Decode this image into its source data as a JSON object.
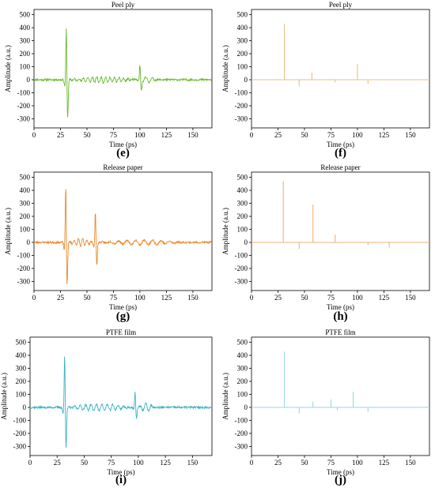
{
  "chart_data": [
    {
      "id": "e",
      "type": "line",
      "kind": "waveform",
      "title": "Peel ply",
      "xlabel": "Time (ps)",
      "ylabel": "Amplitude (a.u.)",
      "panel_label": "(e)",
      "color": "#6ab82e",
      "xlim": [
        0,
        168
      ],
      "ylim": [
        -370,
        540
      ],
      "xticks": [
        0,
        25,
        50,
        75,
        100,
        125,
        150
      ],
      "yticks": [
        -300,
        -200,
        -100,
        0,
        100,
        200,
        300,
        400,
        500
      ],
      "events": [
        {
          "t": 30.5,
          "amp": 420
        },
        {
          "t": 100,
          "amp": 115
        }
      ],
      "oscillations": [
        {
          "t0": 33,
          "t1": 95,
          "amp": 22,
          "period": 4.2
        },
        {
          "t0": 98,
          "t1": 115,
          "amp": 25,
          "period": 6
        }
      ],
      "noise": 8,
      "seed": 11
    },
    {
      "id": "f",
      "type": "bar",
      "kind": "impulses",
      "title": "Peel ply",
      "xlabel": "Time (ps)",
      "ylabel": "Amplitude (a.u.)",
      "panel_label": "(f)",
      "color": "#e8c08a",
      "xlim": [
        0,
        168
      ],
      "ylim": [
        -370,
        540
      ],
      "xticks": [
        0,
        25,
        50,
        75,
        100,
        125,
        150
      ],
      "yticks": [
        -300,
        -200,
        -100,
        0,
        100,
        200,
        300,
        400,
        500
      ],
      "impulses": [
        {
          "x": 31,
          "y": 430
        },
        {
          "x": 45,
          "y": -50
        },
        {
          "x": 57,
          "y": 55
        },
        {
          "x": 79,
          "y": -20
        },
        {
          "x": 100,
          "y": 120
        },
        {
          "x": 110,
          "y": -30
        }
      ]
    },
    {
      "id": "g",
      "type": "line",
      "kind": "waveform",
      "title": "Release paper",
      "xlabel": "Time (ps)",
      "ylabel": "Amplitude (a.u.)",
      "panel_label": "(g)",
      "color": "#e8892b",
      "xlim": [
        0,
        168
      ],
      "ylim": [
        -370,
        540
      ],
      "xticks": [
        0,
        25,
        50,
        75,
        100,
        125,
        150
      ],
      "yticks": [
        -300,
        -200,
        -100,
        0,
        100,
        200,
        300,
        400,
        500
      ],
      "events": [
        {
          "t": 30,
          "amp": 465
        },
        {
          "t": 58,
          "amp": 255
        }
      ],
      "oscillations": [
        {
          "t0": 33,
          "t1": 55,
          "amp": 30,
          "period": 4
        },
        {
          "t0": 62,
          "t1": 140,
          "amp": 18,
          "period": 8
        }
      ],
      "noise": 8,
      "seed": 23
    },
    {
      "id": "h",
      "type": "bar",
      "kind": "impulses",
      "title": "Release paper",
      "xlabel": "Time (ps)",
      "ylabel": "Amplitude (a.u.)",
      "panel_label": "(h)",
      "color": "#f1b27a",
      "xlim": [
        0,
        168
      ],
      "ylim": [
        -370,
        540
      ],
      "xticks": [
        0,
        25,
        50,
        75,
        100,
        125,
        150
      ],
      "yticks": [
        -300,
        -200,
        -100,
        0,
        100,
        200,
        300,
        400,
        500
      ],
      "impulses": [
        {
          "x": 30,
          "y": 470
        },
        {
          "x": 45,
          "y": -50
        },
        {
          "x": 58,
          "y": 290
        },
        {
          "x": 79,
          "y": 60
        },
        {
          "x": 110,
          "y": -20
        },
        {
          "x": 130,
          "y": -40
        }
      ]
    },
    {
      "id": "i",
      "type": "line",
      "kind": "waveform",
      "title": "PTFE film",
      "xlabel": "Time (ps)",
      "ylabel": "Amplitude (a.u.)",
      "panel_label": "(i)",
      "color": "#3bb3c3",
      "xlim": [
        0,
        168
      ],
      "ylim": [
        -370,
        540
      ],
      "xticks": [
        0,
        25,
        50,
        75,
        100,
        125,
        150
      ],
      "yticks": [
        -300,
        -200,
        -100,
        0,
        100,
        200,
        300,
        400,
        500
      ],
      "events": [
        {
          "t": 32,
          "amp": 435
        },
        {
          "t": 97,
          "amp": 120
        }
      ],
      "oscillations": [
        {
          "t0": 35,
          "t1": 93,
          "amp": 25,
          "period": 5
        },
        {
          "t0": 100,
          "t1": 115,
          "amp": 30,
          "period": 5.5
        }
      ],
      "noise": 8,
      "seed": 37
    },
    {
      "id": "j",
      "type": "bar",
      "kind": "impulses",
      "title": "PTFE film",
      "xlabel": "Time (ps)",
      "ylabel": "Amplitude (a.u.)",
      "panel_label": "(j)",
      "color": "#9fd6df",
      "xlim": [
        0,
        168
      ],
      "ylim": [
        -370,
        540
      ],
      "xticks": [
        0,
        25,
        50,
        75,
        100,
        125,
        150
      ],
      "yticks": [
        -300,
        -200,
        -100,
        0,
        100,
        200,
        300,
        400,
        500
      ],
      "impulses": [
        {
          "x": 31,
          "y": 430
        },
        {
          "x": 45,
          "y": -45
        },
        {
          "x": 58,
          "y": 45
        },
        {
          "x": 75,
          "y": 60
        },
        {
          "x": 81,
          "y": -20
        },
        {
          "x": 96,
          "y": 120
        },
        {
          "x": 110,
          "y": -35
        }
      ]
    }
  ]
}
